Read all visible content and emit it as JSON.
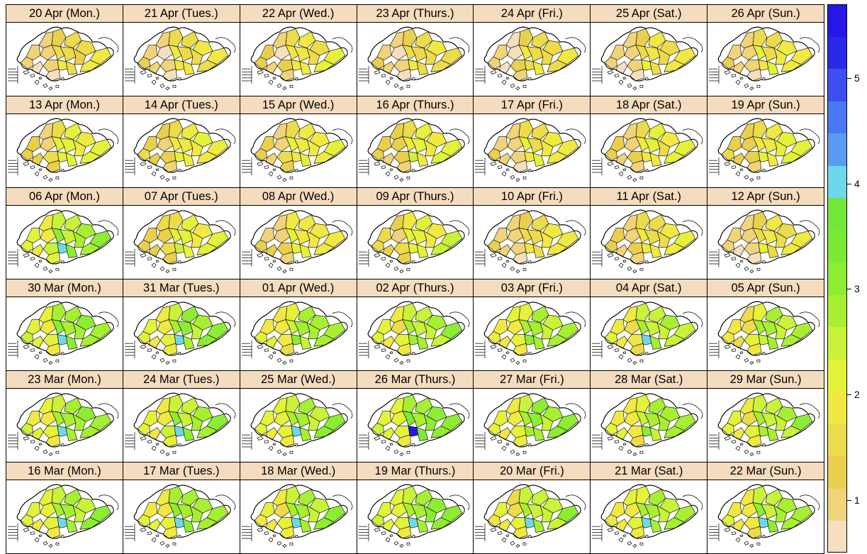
{
  "panels": [
    {
      "label": "20 Apr (Mon.)",
      "level": 1.6
    },
    {
      "label": "21 Apr (Tues.)",
      "level": 1.7
    },
    {
      "label": "22 Apr (Wed.)",
      "level": 1.8
    },
    {
      "label": "23 Apr (Thurs.)",
      "level": 1.6
    },
    {
      "label": "24 Apr (Fri.)",
      "level": 1.6
    },
    {
      "label": "25 Apr (Sat.)",
      "level": 1.7
    },
    {
      "label": "26 Apr (Sun.)",
      "level": 1.8
    },
    {
      "label": "13 Apr (Mon.)",
      "level": 2.0
    },
    {
      "label": "14 Apr (Tues.)",
      "level": 1.9
    },
    {
      "label": "15 Apr (Wed.)",
      "level": 1.9
    },
    {
      "label": "16 Apr (Thurs.)",
      "level": 2.0
    },
    {
      "label": "17 Apr (Fri.)",
      "level": 1.8
    },
    {
      "label": "18 Apr (Sat.)",
      "level": 1.9
    },
    {
      "label": "19 Apr (Sun.)",
      "level": 2.0
    },
    {
      "label": "06 Apr (Mon.)",
      "level": 2.8
    },
    {
      "label": "07 Apr (Tues.)",
      "level": 2.1
    },
    {
      "label": "08 Apr (Wed.)",
      "level": 1.9
    },
    {
      "label": "09 Apr (Thurs.)",
      "level": 2.1
    },
    {
      "label": "10 Apr (Fri.)",
      "level": 1.7
    },
    {
      "label": "11 Apr (Sat.)",
      "level": 1.8
    },
    {
      "label": "12 Apr (Sun.)",
      "level": 1.7
    },
    {
      "label": "30 Mar (Mon.)",
      "level": 2.9
    },
    {
      "label": "31 Mar (Tues.)",
      "level": 2.8
    },
    {
      "label": "01 Apr (Wed.)",
      "level": 2.7
    },
    {
      "label": "02 Apr (Thurs.)",
      "level": 2.7
    },
    {
      "label": "03 Apr (Fri.)",
      "level": 2.7
    },
    {
      "label": "04 Apr (Sat.)",
      "level": 2.6
    },
    {
      "label": "05 Apr (Sun.)",
      "level": 2.6
    },
    {
      "label": "23 Mar (Mon.)",
      "level": 2.8
    },
    {
      "label": "24 Mar (Tues.)",
      "level": 2.8
    },
    {
      "label": "25 Mar (Wed.)",
      "level": 2.8
    },
    {
      "label": "26 Mar (Thurs.)",
      "level": 3.0
    },
    {
      "label": "27 Mar (Fri.)",
      "level": 2.8
    },
    {
      "label": "28 Mar (Sat.)",
      "level": 2.7
    },
    {
      "label": "29 Mar (Sun.)",
      "level": 2.7
    },
    {
      "label": "16 Mar (Mon.)",
      "level": 2.8
    },
    {
      "label": "17 Mar (Tues.)",
      "level": 2.8
    },
    {
      "label": "18 Mar (Wed.)",
      "level": 2.7
    },
    {
      "label": "19 Mar (Thurs.)",
      "level": 2.9
    },
    {
      "label": "20 Mar (Fri.)",
      "level": 2.6
    },
    {
      "label": "21 Mar (Sat.)",
      "level": 2.7
    },
    {
      "label": "22 Mar (Sun.)",
      "level": 2.7
    }
  ],
  "hotspots": {
    "14": 4.0,
    "21": 4.0,
    "22": 4.1,
    "26": 3.9,
    "28": 4.0,
    "29": 4.1,
    "30": 3.9,
    "31": 5.6,
    "35": 4.0,
    "36": 4.1,
    "37": 3.9,
    "38": 4.0,
    "39": 4.0,
    "40": 4.0,
    "41": 3.9
  },
  "colorkey": {
    "ticks": [
      "1",
      "2",
      "3",
      "4",
      "5"
    ],
    "range": [
      0.5,
      5.7
    ],
    "colors": [
      "#f5dfbf",
      "#f0d37a",
      "#e9cf4e",
      "#ecdb4b",
      "#f1e943",
      "#e5f23a",
      "#c9f23a",
      "#a7ef33",
      "#8ced33",
      "#7bea34",
      "#73e63a",
      "#6ed8ea",
      "#5a9cf4",
      "#4a78f2",
      "#3d4ff0",
      "#2a2ae6",
      "#2618e8"
    ]
  },
  "colors": {
    "strip": "#f5dcbf",
    "outline": "#000000",
    "background": "#ffffff"
  }
}
